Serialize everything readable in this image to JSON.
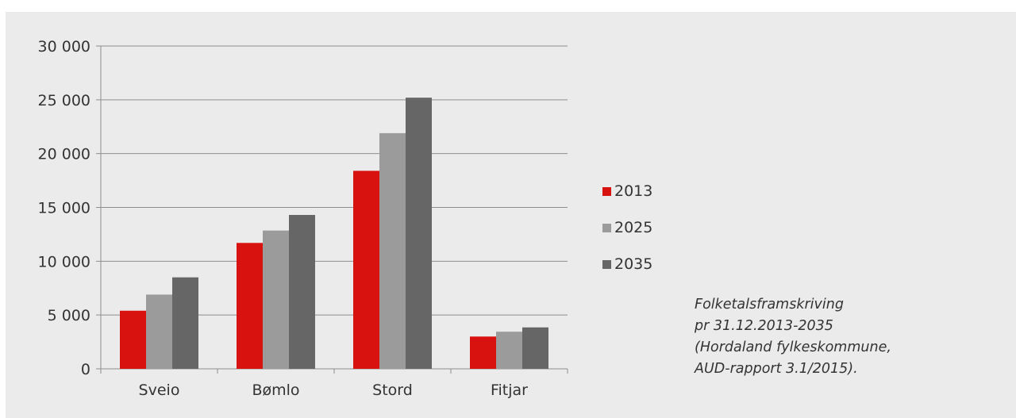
{
  "chart_data": {
    "type": "bar",
    "categories": [
      "Sveio",
      "Bømlo",
      "Stord",
      "Fitjar"
    ],
    "series": [
      {
        "name": "2013",
        "color": "#d7120f",
        "values": [
          5400,
          11700,
          18400,
          3000
        ]
      },
      {
        "name": "2025",
        "color": "#9b9b9b",
        "values": [
          6900,
          12850,
          21900,
          3450
        ]
      },
      {
        "name": "2035",
        "color": "#666666",
        "values": [
          8500,
          14300,
          25200,
          3850
        ]
      }
    ],
    "ylim": [
      0,
      30000
    ],
    "yticks": [
      0,
      5000,
      10000,
      15000,
      20000,
      25000,
      30000
    ],
    "ytick_labels": [
      "0",
      "5 000",
      "10 000",
      "15 000",
      "20 000",
      "25 000",
      "30 000"
    ],
    "grid": true,
    "legend": "right",
    "title": "",
    "xlabel": "",
    "ylabel": ""
  },
  "caption": {
    "line1": "Folketalsframskriving",
    "line2": "pr 31.12.2013-2035",
    "line3": "(Hordaland fylkeskommune,",
    "line4": "AUD-rapport 3.1/2015)."
  }
}
